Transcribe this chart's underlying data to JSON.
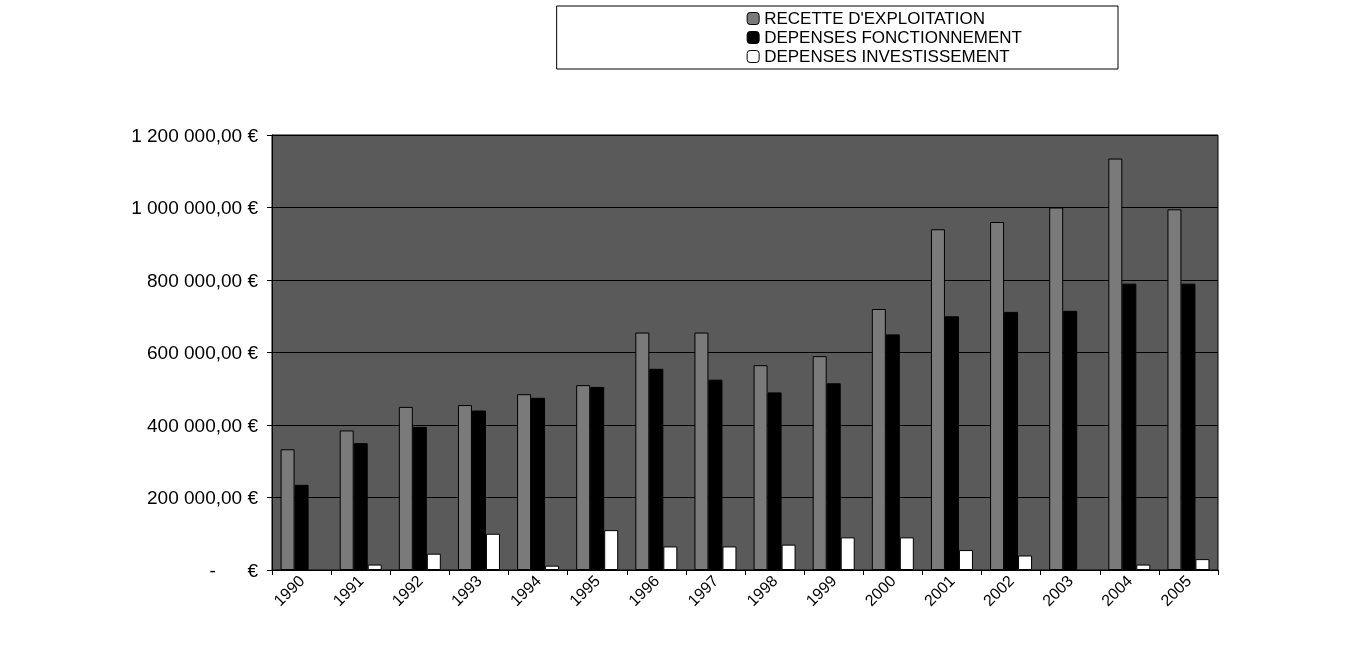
{
  "chart_data": {
    "type": "bar",
    "categories": [
      "1990",
      "1991",
      "1992",
      "1993",
      "1994",
      "1995",
      "1996",
      "1997",
      "1998",
      "1999",
      "2000",
      "2001",
      "2002",
      "2003",
      "2004",
      "2005"
    ],
    "series": [
      {
        "name": "RECETTE D'EXPLOITATION",
        "color": "#7a7a7a",
        "values": [
          333000,
          385000,
          450000,
          455000,
          485000,
          510000,
          655000,
          655000,
          565000,
          590000,
          720000,
          940000,
          960000,
          1000000,
          1135000,
          995000
        ]
      },
      {
        "name": "DEPENSES FONCTIONNEMENT",
        "color": "#000000",
        "values": [
          235000,
          350000,
          395000,
          440000,
          475000,
          505000,
          555000,
          525000,
          490000,
          515000,
          650000,
          700000,
          712000,
          715000,
          790000,
          790000
        ]
      },
      {
        "name": "DEPENSES INVESTISSEMENT",
        "color": "#ffffff",
        "values": [
          null,
          15000,
          45000,
          100000,
          12000,
          110000,
          65000,
          65000,
          70000,
          90000,
          90000,
          55000,
          40000,
          null,
          15000,
          30000
        ]
      }
    ],
    "ylim": [
      0,
      1200000
    ],
    "yticks": [
      {
        "value": 0,
        "label": "-      €"
      },
      {
        "value": 200000,
        "label": "200 000,00 €"
      },
      {
        "value": 400000,
        "label": "400 000,00 €"
      },
      {
        "value": 600000,
        "label": "600 000,00 €"
      },
      {
        "value": 800000,
        "label": "800 000,00 €"
      },
      {
        "value": 1000000,
        "label": "1 000 000,00 €"
      },
      {
        "value": 1200000,
        "label": "1 200 000,00 €"
      }
    ],
    "grid": "y",
    "legend": "top right"
  }
}
